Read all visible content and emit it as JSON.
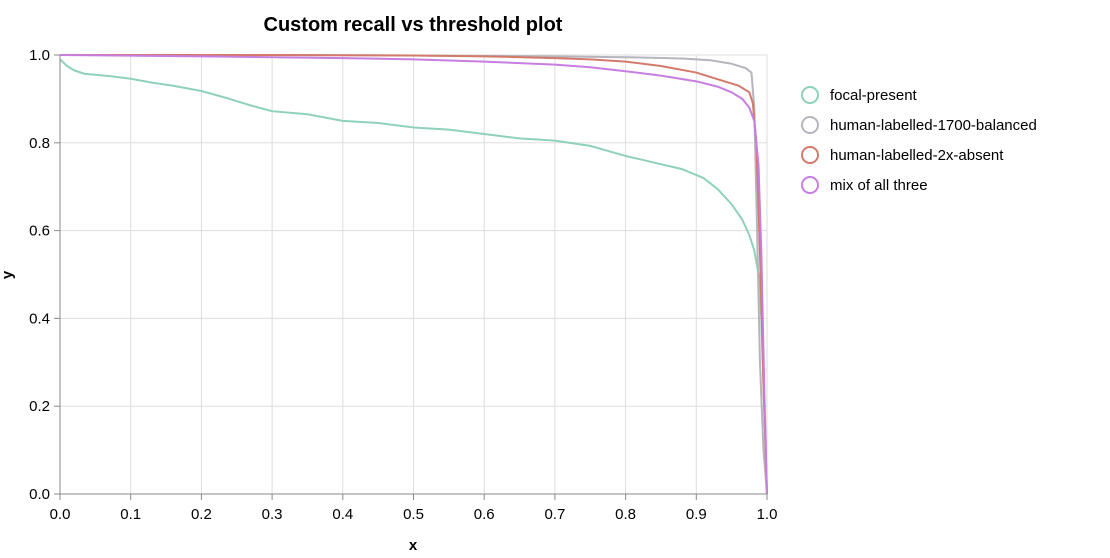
{
  "chart_data": {
    "type": "line",
    "title": "Custom recall vs threshold plot",
    "xlabel": "x",
    "ylabel": "y",
    "xlim": [
      0,
      1
    ],
    "ylim": [
      0,
      1
    ],
    "grid": true,
    "legend_position": "right",
    "x_ticks": [
      "0.0",
      "0.1",
      "0.2",
      "0.3",
      "0.4",
      "0.5",
      "0.6",
      "0.7",
      "0.8",
      "0.9",
      "1.0"
    ],
    "y_ticks": [
      "0.0",
      "0.2",
      "0.4",
      "0.6",
      "0.8",
      "1.0"
    ],
    "series": [
      {
        "name": "focal-present",
        "color": "#8fd1bb",
        "x": [
          0,
          0.01,
          0.02,
          0.035,
          0.05,
          0.07,
          0.1,
          0.13,
          0.16,
          0.2,
          0.24,
          0.27,
          0.3,
          0.35,
          0.4,
          0.45,
          0.5,
          0.55,
          0.6,
          0.65,
          0.7,
          0.75,
          0.8,
          0.84,
          0.88,
          0.91,
          0.93,
          0.95,
          0.965,
          0.975,
          0.982,
          0.988,
          0.992,
          0.996,
          1.0
        ],
        "y": [
          0.99,
          0.975,
          0.965,
          0.957,
          0.955,
          0.952,
          0.946,
          0.937,
          0.93,
          0.918,
          0.9,
          0.885,
          0.872,
          0.865,
          0.85,
          0.845,
          0.835,
          0.83,
          0.82,
          0.81,
          0.805,
          0.793,
          0.77,
          0.755,
          0.74,
          0.72,
          0.695,
          0.66,
          0.625,
          0.59,
          0.555,
          0.5,
          0.4,
          0.2,
          0.0
        ]
      },
      {
        "name": "human-labelled-1700-balanced",
        "color": "#b5b5bd",
        "x": [
          0,
          0.3,
          0.5,
          0.6,
          0.7,
          0.8,
          0.88,
          0.92,
          0.95,
          0.97,
          0.978,
          0.982,
          0.986,
          0.99,
          0.995,
          1.0
        ],
        "y": [
          1.0,
          1.0,
          0.999,
          0.998,
          0.997,
          0.995,
          0.992,
          0.988,
          0.98,
          0.97,
          0.96,
          0.88,
          0.6,
          0.3,
          0.1,
          0.0
        ]
      },
      {
        "name": "human-labelled-2x-absent",
        "color": "#d47a6a",
        "x": [
          0,
          0.3,
          0.5,
          0.6,
          0.7,
          0.75,
          0.8,
          0.85,
          0.9,
          0.93,
          0.96,
          0.975,
          0.98,
          0.985,
          0.99,
          0.995,
          1.0
        ],
        "y": [
          1.0,
          1.0,
          0.999,
          0.997,
          0.993,
          0.99,
          0.985,
          0.975,
          0.96,
          0.945,
          0.93,
          0.915,
          0.89,
          0.8,
          0.55,
          0.25,
          0.0
        ]
      },
      {
        "name": "mix of all three",
        "color": "#c77ee0",
        "x": [
          0,
          0.2,
          0.4,
          0.5,
          0.6,
          0.7,
          0.75,
          0.8,
          0.85,
          0.9,
          0.93,
          0.95,
          0.965,
          0.975,
          0.982,
          0.988,
          0.992,
          0.996,
          1.0
        ],
        "y": [
          1.0,
          0.997,
          0.993,
          0.99,
          0.985,
          0.978,
          0.972,
          0.963,
          0.953,
          0.94,
          0.928,
          0.915,
          0.9,
          0.88,
          0.85,
          0.75,
          0.55,
          0.25,
          0.0
        ]
      }
    ]
  }
}
